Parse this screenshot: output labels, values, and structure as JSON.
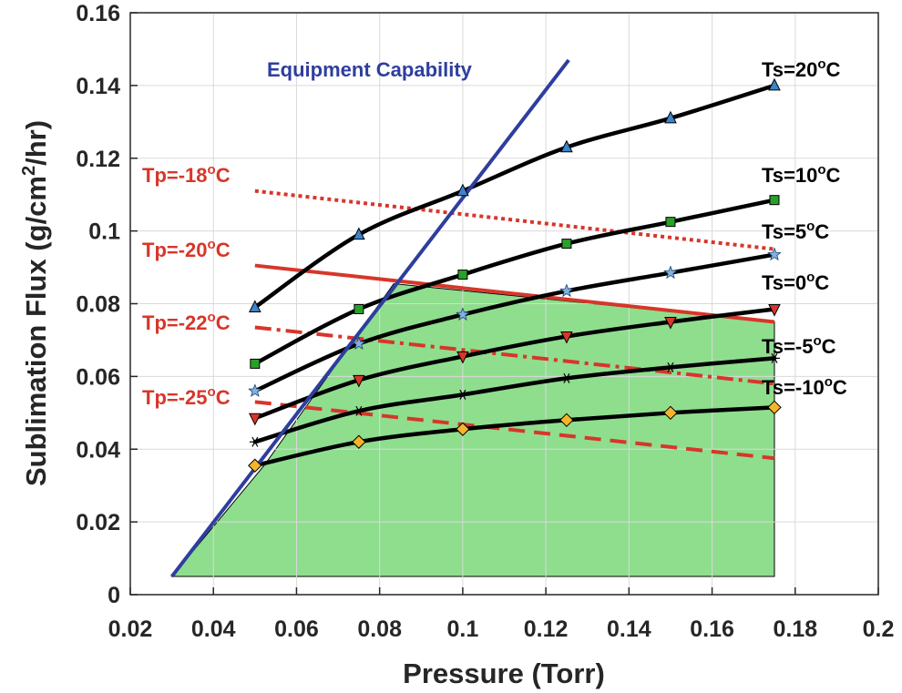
{
  "chart_data": {
    "type": "line",
    "xlabel": "Pressure (Torr)",
    "ylabel": {
      "prefix": "Sublimation Flux (g/cm",
      "sup": "2",
      "suffix": "/hr)"
    },
    "xlim": [
      0.02,
      0.2
    ],
    "ylim": [
      0,
      0.16
    ],
    "x_ticks": [
      "0.02",
      "0.04",
      "0.06",
      "0.08",
      "0.1",
      "0.12",
      "0.14",
      "0.16",
      "0.18",
      "0.2"
    ],
    "y_ticks": [
      "0",
      "0.02",
      "0.04",
      "0.06",
      "0.08",
      "0.1",
      "0.12",
      "0.14",
      "0.16"
    ],
    "grid": true,
    "colors": {
      "ts": "#000000",
      "tp": "#d7362a",
      "equipment": "#2e3e9e",
      "region": "#8ede8e"
    },
    "x": [
      0.05,
      0.075,
      0.1,
      0.125,
      0.15,
      0.175
    ],
    "ts_series": [
      {
        "name": "Ts=20°C",
        "label": {
          "prefix": "Ts=20",
          "sup": "o",
          "suffix": "C"
        },
        "marker": "triangle-up",
        "marker_color": "#3c84cc",
        "values": [
          0.079,
          0.099,
          0.111,
          0.123,
          0.131,
          0.14
        ]
      },
      {
        "name": "Ts=10°C",
        "label": {
          "prefix": "Ts=10",
          "sup": "o",
          "suffix": "C"
        },
        "marker": "square",
        "marker_color": "#2aa02a",
        "values": [
          0.0635,
          0.0785,
          0.088,
          0.0965,
          0.1025,
          0.1085
        ]
      },
      {
        "name": "Ts=5°C",
        "label": {
          "prefix": "Ts=5",
          "sup": "o",
          "suffix": "C"
        },
        "marker": "star",
        "marker_color": "#7fb2e0",
        "values": [
          0.056,
          0.069,
          0.077,
          0.0835,
          0.0885,
          0.0935
        ]
      },
      {
        "name": "Ts=0°C",
        "label": {
          "prefix": "Ts=0",
          "sup": "o",
          "suffix": "C"
        },
        "marker": "triangle-down",
        "marker_color": "#d7362a",
        "values": [
          0.0485,
          0.059,
          0.0655,
          0.071,
          0.075,
          0.0785
        ]
      },
      {
        "name": "Ts=-5°C",
        "label": {
          "prefix": "Ts=-5",
          "sup": "o",
          "suffix": "C"
        },
        "marker": "asterisk",
        "marker_color": "#000000",
        "values": [
          0.042,
          0.0505,
          0.055,
          0.0595,
          0.0625,
          0.065
        ]
      },
      {
        "name": "Ts=-10°C",
        "label": {
          "prefix": "Ts=-10",
          "sup": "o",
          "suffix": "C"
        },
        "marker": "diamond",
        "marker_color": "#f5b42a",
        "values": [
          0.0355,
          0.042,
          0.0455,
          0.048,
          0.05,
          0.0515
        ]
      }
    ],
    "tp_series": [
      {
        "name": "Tp=-18°C",
        "label": {
          "prefix": "Tp=-18",
          "sup": "o",
          "suffix": "C"
        },
        "style": "dotted",
        "x": [
          0.05,
          0.175
        ],
        "values": [
          0.111,
          0.095
        ]
      },
      {
        "name": "Tp=-20°C",
        "label": {
          "prefix": "Tp=-20",
          "sup": "o",
          "suffix": "C"
        },
        "style": "solid",
        "x": [
          0.05,
          0.175
        ],
        "values": [
          0.0905,
          0.075
        ]
      },
      {
        "name": "Tp=-22°C",
        "label": {
          "prefix": "Tp=-22",
          "sup": "o",
          "suffix": "C"
        },
        "style": "dashdot",
        "x": [
          0.05,
          0.175
        ],
        "values": [
          0.0735,
          0.058
        ]
      },
      {
        "name": "Tp=-25°C",
        "label": {
          "prefix": "Tp=-25",
          "sup": "o",
          "suffix": "C"
        },
        "style": "dashed",
        "x": [
          0.05,
          0.175
        ],
        "values": [
          0.053,
          0.0375
        ]
      }
    ],
    "equipment_capability": {
      "name": "Equipment Capability",
      "x": [
        0.03,
        0.1255
      ],
      "values": [
        0.005,
        0.147
      ]
    },
    "design_space_region": {
      "x": [
        0.03,
        0.0522,
        0.0834,
        0.175,
        0.175
      ],
      "values": [
        0.005,
        0.0355,
        0.0855,
        0.075,
        0.005
      ]
    }
  }
}
